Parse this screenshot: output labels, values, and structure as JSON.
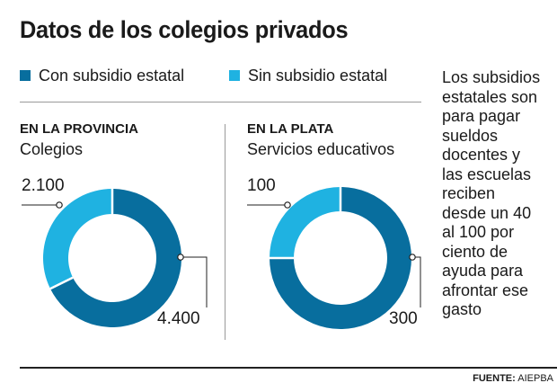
{
  "title": "Datos de los colegios privados",
  "colors": {
    "subsidized": "#086e9e",
    "unsubsidized": "#1fb2e1",
    "rule": "#9a9a9a",
    "text": "#1a1a1a"
  },
  "legend": [
    {
      "label": "Con subsidio estatal",
      "color": "#086e9e"
    },
    {
      "label": "Sin subsidio estatal",
      "color": "#1fb2e1"
    }
  ],
  "note": "Los subsidios\nestatales son\npara pagar\nsueldos\ndocentes y\nlas escuelas\nreciben\ndesde un 40\nal 100 por\nciento de\nayuda para\nafrontar ese\ngasto",
  "chart_data": [
    {
      "type": "pie",
      "section_title": "EN LA PROVINCIA",
      "subtitle": "Colegios",
      "categories": [
        "Con subsidio estatal",
        "Sin subsidio estatal"
      ],
      "values": [
        4400,
        2100
      ],
      "value_labels": [
        "4.400",
        "2.100"
      ]
    },
    {
      "type": "pie",
      "section_title": "EN LA PLATA",
      "subtitle": "Servicios educativos",
      "categories": [
        "Con subsidio estatal",
        "Sin subsidio estatal"
      ],
      "values": [
        300,
        100
      ],
      "value_labels": [
        "300",
        "100"
      ]
    }
  ],
  "source": {
    "label": "FUENTE:",
    "value": "AIEPBA"
  }
}
